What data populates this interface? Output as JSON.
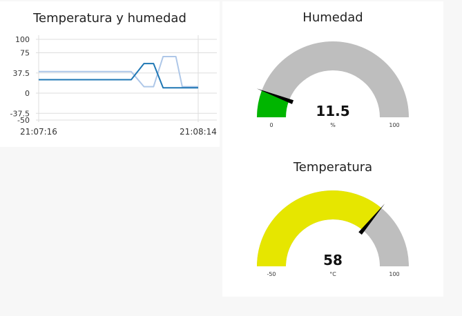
{
  "chart_card": {
    "title": "Temperatura y humedad"
  },
  "chart_data": {
    "type": "line",
    "title": "Temperatura y humedad",
    "x_ticks": [
      "21:07:16",
      "21:08:14"
    ],
    "y_ticks": [
      "100",
      "75",
      "37.5",
      "0",
      "-37.5",
      "-50"
    ],
    "ylim": [
      -50,
      100
    ],
    "grid": true,
    "series": [
      {
        "color": "#aec7e8",
        "x": [
          0,
          0.58,
          0.66,
          0.71,
          0.76,
          0.8,
          0.86,
          0.91,
          1
        ],
        "values": [
          40,
          40,
          12,
          12,
          68,
          68,
          12,
          12,
          12
        ],
        "values_full": [
          [
            0,
            40
          ],
          [
            0.58,
            40
          ],
          [
            0.66,
            12
          ],
          [
            0.72,
            12
          ],
          [
            0.78,
            68
          ],
          [
            0.86,
            68
          ],
          [
            0.9,
            12
          ],
          [
            1.0,
            12
          ],
          [
            1.0,
            12
          ]
        ]
      },
      {
        "color": "#1f77b4",
        "values_full": [
          [
            0,
            25
          ],
          [
            0.58,
            25
          ],
          [
            0.66,
            55
          ],
          [
            0.72,
            55
          ],
          [
            0.78,
            10
          ],
          [
            0.86,
            10
          ],
          [
            0.98,
            10
          ],
          [
            1.0,
            10
          ]
        ]
      }
    ]
  },
  "gauges": {
    "humidity": {
      "title": "Humedad",
      "value": "11.5",
      "numeric_value": 11.5,
      "unit": "%",
      "min": "0",
      "max": "100",
      "min_num": 0,
      "max_num": 100,
      "fill_color": "#00b500",
      "track_color": "#bebebe"
    },
    "temperature": {
      "title": "Temperatura",
      "value": "58",
      "numeric_value": 58,
      "unit": "°C",
      "min": "-50",
      "max": "100",
      "min_num": -50,
      "max_num": 100,
      "fill_color": "#e6e600",
      "track_color": "#bebebe"
    }
  }
}
